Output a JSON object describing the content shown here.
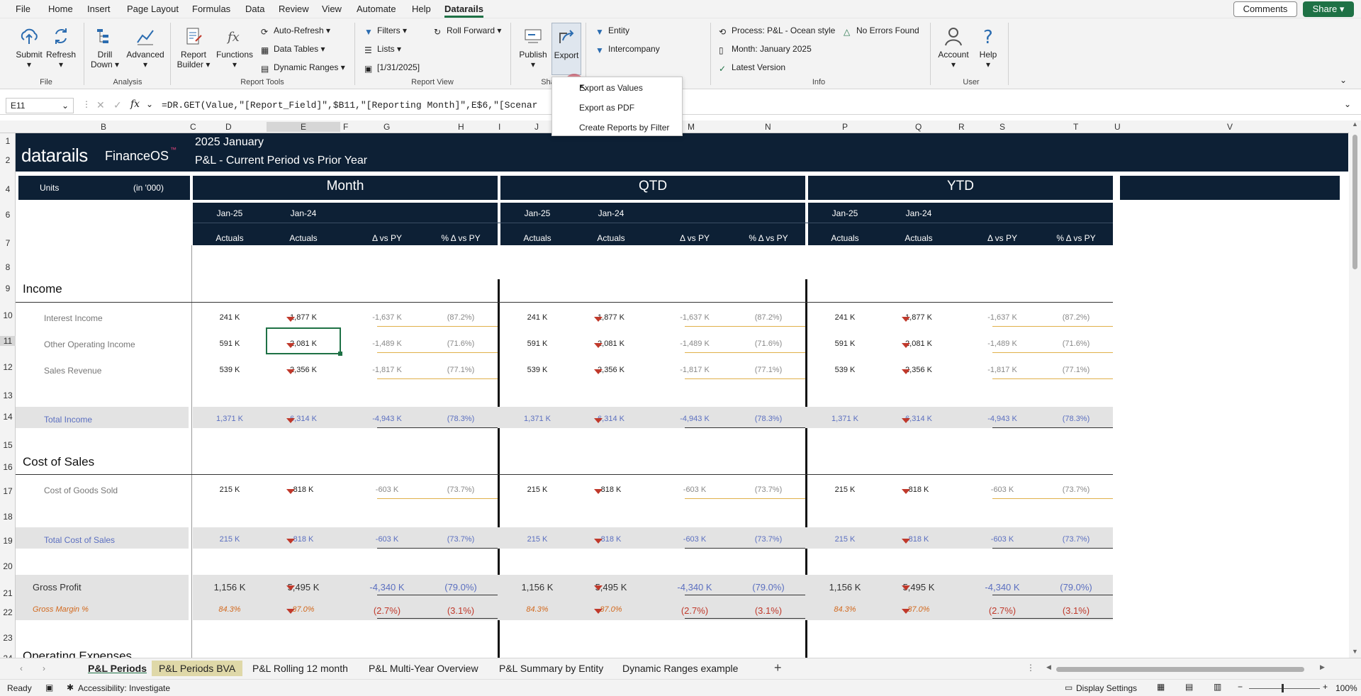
{
  "menu": {
    "tabs": [
      "File",
      "Home",
      "Insert",
      "Page Layout",
      "Formulas",
      "Data",
      "Review",
      "View",
      "Automate",
      "Help",
      "Datarails"
    ],
    "comments": "Comments",
    "share": "Share"
  },
  "ribbon": {
    "submit": "Submit",
    "refresh": "Refresh",
    "drill": "Drill",
    "down": "Down",
    "advanced": "Advanced",
    "report": "Report",
    "builder": "Builder",
    "functions": "Functions",
    "auto_refresh": "Auto-Refresh",
    "data_tables": "Data Tables",
    "dynamic_ranges": "Dynamic Ranges",
    "filters": "Filters",
    "lists": "Lists",
    "date": "[1/31/2025]",
    "roll_forward": "Roll Forward",
    "publish": "Publish",
    "export": "Export",
    "entity": "Entity",
    "intercompany": "Intercompany",
    "process": "Process: P&L - Ocean style",
    "month": "Month: January 2025",
    "latest": "Latest Version",
    "no_errors": "No Errors Found",
    "account": "Account",
    "help": "Help",
    "groups": {
      "file": "File",
      "analysis": "Analysis",
      "report_tools": "Report Tools",
      "report_view": "Report View",
      "share": "Sha",
      "info": "Info",
      "user": "User"
    }
  },
  "export_menu": [
    "Export as Values",
    "Export as PDF",
    "Create Reports by Filter"
  ],
  "formula": {
    "namebox": "E11",
    "fx": "fx",
    "text": "=DR.GET(Value,\"[Report_Field]\",$B11,\"[Reporting Month]\",E$6,\"[Scenar"
  },
  "columns": [
    "B",
    "C",
    "D",
    "E",
    "F",
    "G",
    "H",
    "I",
    "J",
    "K",
    "M",
    "N",
    "O",
    "P",
    "Q",
    "R",
    "S",
    "T",
    "U",
    "V"
  ],
  "rows": [
    "1",
    "2",
    "4",
    "6",
    "7",
    "8",
    "9",
    "10",
    "11",
    "12",
    "13",
    "14",
    "15",
    "16",
    "17",
    "18",
    "19",
    "20",
    "21",
    "22",
    "23",
    "24"
  ],
  "report": {
    "title1": "2025 January",
    "title2": "P&L  -  Current Period vs Prior Year",
    "logo": "datarails",
    "logo2": "FinanceOS",
    "tm": "™",
    "units": "Units",
    "in000": "(in '000)",
    "blocks": [
      "Month",
      "QTD",
      "YTD"
    ],
    "periods": [
      "Jan-25",
      "Jan-24"
    ],
    "heads": [
      "Actuals",
      "Actuals",
      "Δ vs PY",
      "% Δ vs PY"
    ]
  },
  "sections": {
    "income": "Income",
    "cos": "Cost of Sales",
    "opex": "Operating Expenses"
  },
  "lines": {
    "interest": {
      "label": "Interest Income",
      "v": [
        "241 K",
        "1,877 K",
        "-1,637 K",
        "(87.2%)"
      ]
    },
    "other": {
      "label": "Other Operating Income",
      "v": [
        "591 K",
        "2,081 K",
        "-1,489 K",
        "(71.6%)"
      ]
    },
    "sales": {
      "label": "Sales Revenue",
      "v": [
        "539 K",
        "2,356 K",
        "-1,817 K",
        "(77.1%)"
      ]
    },
    "total_income": {
      "label": "Total Income",
      "v": [
        "1,371 K",
        "6,314 K",
        "-4,943 K",
        "(78.3%)"
      ]
    },
    "cogs": {
      "label": "Cost of Goods Sold",
      "v": [
        "215 K",
        "818 K",
        "-603 K",
        "(73.7%)"
      ]
    },
    "total_cos": {
      "label": "Total Cost of Sales",
      "v": [
        "215 K",
        "818 K",
        "-603 K",
        "(73.7%)"
      ]
    },
    "gross_profit": {
      "label": "Gross Profit",
      "v": [
        "1,156 K",
        "5,495 K",
        "-4,340 K",
        "(79.0%)"
      ]
    },
    "gross_margin": {
      "label": "Gross Margin %",
      "v": [
        "84.3%",
        "87.0%",
        "(2.7%)",
        "(3.1%)"
      ]
    }
  },
  "sheets": [
    "P&L Periods",
    "P&L Periods BVA",
    "P&L Rolling 12 month",
    "P&L Multi-Year Overview",
    "P&L Summary by Entity",
    "Dynamic Ranges example"
  ],
  "status": {
    "ready": "Ready",
    "accessibility": "Accessibility: Investigate",
    "display": "Display Settings",
    "zoom": "100%"
  }
}
